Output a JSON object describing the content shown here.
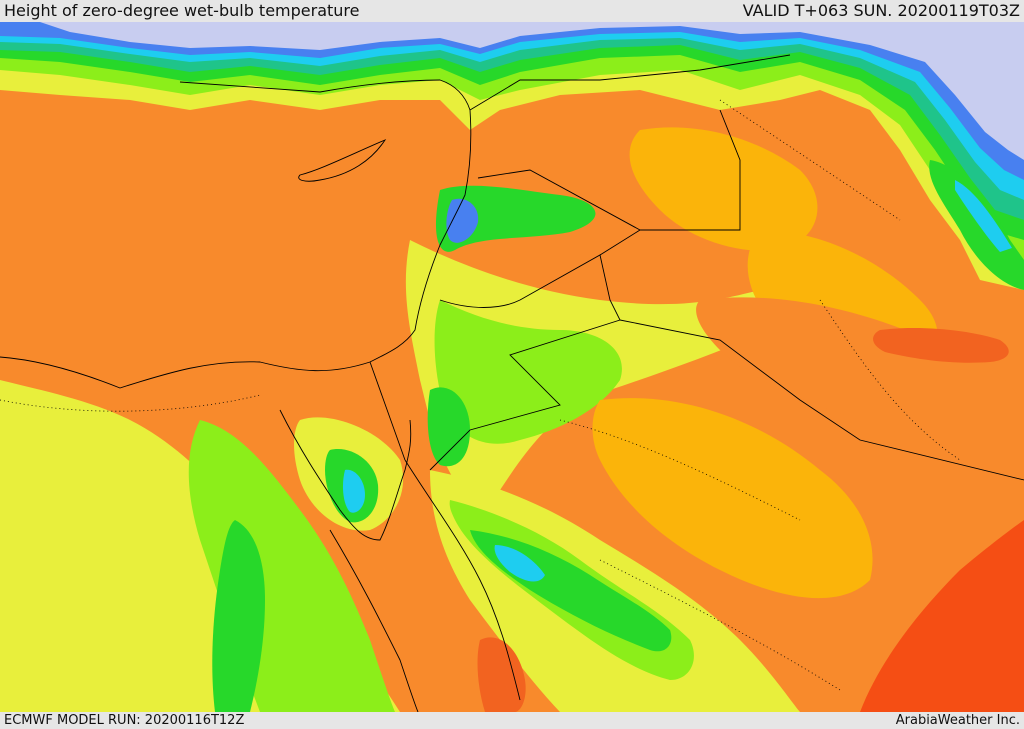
{
  "header": {
    "title": "Height of zero-degree wet-bulb temperature",
    "valid": "VALID T+063 SUN. 20200119T03Z"
  },
  "footer": {
    "model_run": "ECMWF MODEL RUN: 20200116T12Z",
    "credit": "ArabiaWeather Inc."
  },
  "colors": {
    "deep_red": "#f54e14",
    "red": "#f26320",
    "orange": "#f88a2c",
    "amber": "#fbb40a",
    "yellow": "#e8ef3c",
    "lime": "#8cee1a",
    "green": "#27d82a",
    "teal": "#1fc48a",
    "cyan": "#1ecdf0",
    "blue": "#4880f0",
    "purple": "#7c5ce0",
    "lavender": "#c8cdf0",
    "borders": "#000000"
  }
}
